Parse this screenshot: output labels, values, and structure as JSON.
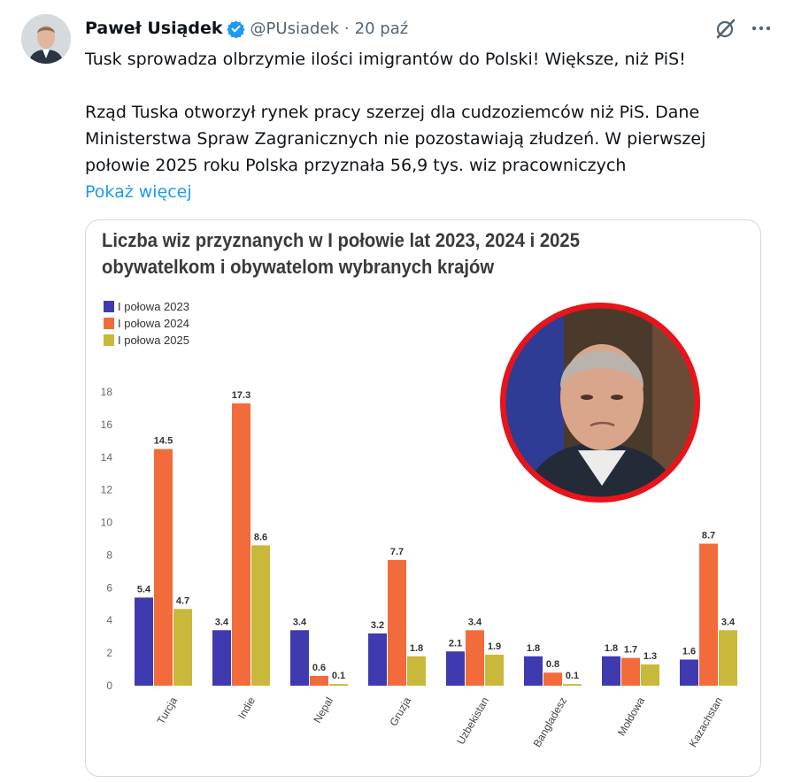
{
  "tweet": {
    "author_name": "Paweł Usiądek",
    "handle": "@PUsiadek",
    "separator": "·",
    "date": "20 paź",
    "headline": "Tusk sprowadza olbrzymie ilości imigrantów do Polski! Większe, niż PiS!",
    "body": "Rząd Tuska otworzył rynek pracy szerzej dla cudzoziemców niż PiS. Dane Ministerstwa Spraw Zagranicznych nie pozostawiają złudzeń. W pierwszej połowie 2025 roku Polska przyznała 56,9 tys. wiz pracowniczych",
    "show_more": "Pokaż więcej"
  },
  "icons": {
    "verified": "verified-badge-icon",
    "grok": "grok-icon",
    "more": "more-icon"
  },
  "colors": {
    "link": "#1d9bf0",
    "verified": "#1d9bf0",
    "series_2023": "#3f3ab0",
    "series_2024": "#f26b3a",
    "series_2025": "#c9b83a",
    "photo_ring": "#e8141c"
  },
  "chart_data": {
    "type": "bar",
    "title": "Liczba wiz przyznanych w I połowie lat 2023, 2024 i 2025 obywatelkom i obywatelom wybranych krajów",
    "categories": [
      "Turcja",
      "Indie",
      "Nepal",
      "Gruzja",
      "Uzbekistan",
      "Bangladesz",
      "Mołdowa",
      "Kazachstan"
    ],
    "series": [
      {
        "name": "I połowa 2023",
        "values": [
          5.4,
          3.4,
          3.4,
          3.2,
          2.1,
          1.8,
          1.8,
          1.6
        ]
      },
      {
        "name": "I połowa 2024",
        "values": [
          14.5,
          17.3,
          0.6,
          7.7,
          3.4,
          0.8,
          1.7,
          8.7
        ]
      },
      {
        "name": "I połowa 2025",
        "values": [
          4.7,
          8.6,
          0.1,
          1.8,
          1.9,
          0.1,
          1.3,
          3.4
        ]
      }
    ],
    "yticks": [
      "0",
      "2",
      "4",
      "6",
      "8",
      "10",
      "12",
      "14",
      "16",
      "18"
    ],
    "ylim": [
      0,
      18
    ],
    "xlabel": "",
    "ylabel": "",
    "legend_position": "top-left",
    "grid": false
  }
}
